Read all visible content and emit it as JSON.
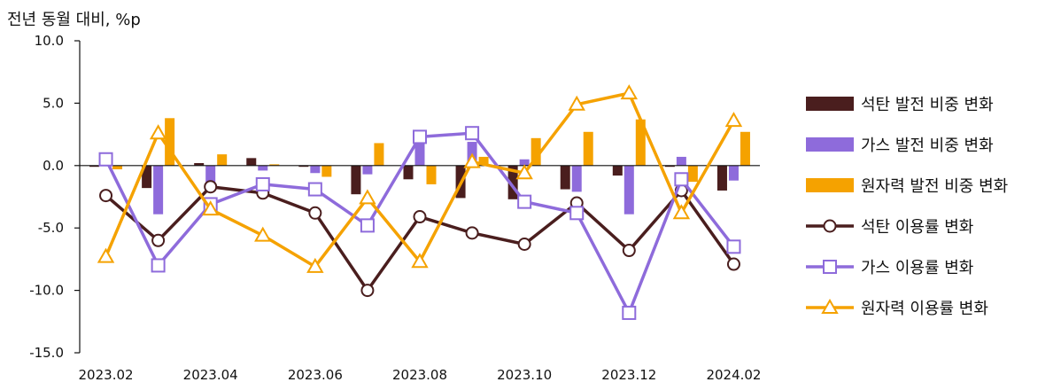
{
  "colors": {
    "coal": "#4a1e1e",
    "gas": "#8e6bdb",
    "nuclear": "#f5a200"
  },
  "chart_data": {
    "type": "bar+line",
    "ylabel": "전년 동월 대비, %p",
    "ylim": [
      -15,
      10
    ],
    "yticks": [
      "10.0",
      "5.0",
      "0.0",
      "-5.0",
      "-10.0",
      "-15.0"
    ],
    "ytick_values": [
      10,
      5,
      0,
      -5,
      -10,
      -15
    ],
    "categories": [
      "2023.02",
      "2023.03",
      "2023.04",
      "2023.05",
      "2023.06",
      "2023.07",
      "2023.08",
      "2023.09",
      "2023.10",
      "2023.11",
      "2023.12",
      "2024.01",
      "2024.02"
    ],
    "xtick_labels": [
      "2023.02",
      "2023.04",
      "2023.06",
      "2023.08",
      "2023.10",
      "2023.12",
      "2024.02"
    ],
    "bar_series": [
      {
        "name": "석탄 발전 비중 변화",
        "color_key": "coal",
        "values": [
          -0.1,
          -1.8,
          0.2,
          0.6,
          -0.1,
          -2.3,
          -1.1,
          -2.6,
          -2.7,
          -1.9,
          -0.8,
          -0.1,
          -2.0
        ]
      },
      {
        "name": "가스 발전 비중 변화",
        "color_key": "gas",
        "values": [
          0.0,
          -3.9,
          -1.5,
          -0.4,
          -0.6,
          -0.7,
          1.9,
          1.9,
          0.5,
          -2.1,
          -3.9,
          0.7,
          -1.2
        ]
      },
      {
        "name": "원자력 발전 비중 변화",
        "color_key": "nuclear",
        "values": [
          -0.3,
          3.8,
          0.9,
          0.1,
          -0.9,
          1.8,
          -1.5,
          0.7,
          2.2,
          2.7,
          3.7,
          -1.3,
          2.7
        ]
      }
    ],
    "line_series": [
      {
        "name": "석탄 이용률 변화",
        "color_key": "coal",
        "marker": "circle",
        "values": [
          -2.4,
          -6.0,
          -1.7,
          -2.2,
          -3.8,
          -10.0,
          -4.1,
          -5.4,
          -6.3,
          -3.0,
          -6.8,
          -2.0,
          -7.9
        ]
      },
      {
        "name": "가스 이용률 변화",
        "color_key": "gas",
        "marker": "square",
        "values": [
          0.5,
          -8.0,
          -3.1,
          -1.5,
          -1.9,
          -4.8,
          2.3,
          2.6,
          -2.9,
          -3.8,
          -11.8,
          -1.1,
          -6.5
        ]
      },
      {
        "name": "원자력 이용률 변화",
        "color_key": "nuclear",
        "marker": "triangle",
        "values": [
          -7.3,
          2.6,
          -3.5,
          -5.6,
          -8.1,
          -2.6,
          -7.7,
          0.3,
          -0.6,
          4.9,
          5.8,
          -3.8,
          3.6
        ]
      }
    ],
    "legend_position": "right",
    "grid": false
  }
}
